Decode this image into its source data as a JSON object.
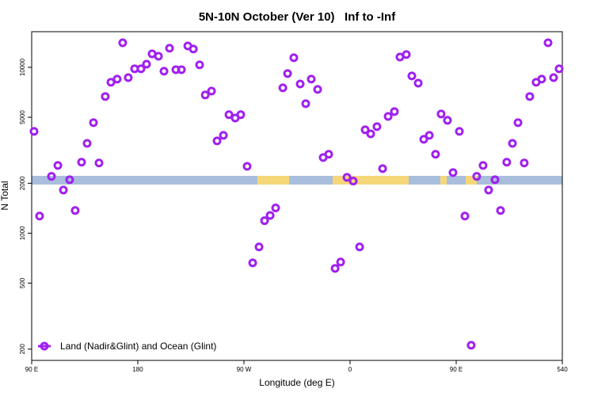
{
  "chart_data": {
    "type": "scatter",
    "title": "5N-10N October (Ver 10)   Inf to -Inf",
    "x_label": "Longitude (deg E)",
    "y_label": "N Total",
    "log_y": true,
    "legend": "bottom-left",
    "xlim": [
      90,
      540
    ],
    "ylim": [
      171,
      16400
    ],
    "xticks": [
      {
        "value": 90,
        "label": "90 E"
      },
      180,
      {
        "value": 270,
        "label": "90 W"
      },
      {
        "value": 360,
        "label": "0"
      },
      {
        "value": 450,
        "label": "90 E"
      },
      540
    ],
    "yticks": [
      200,
      500,
      1000,
      2000,
      5000,
      10000
    ],
    "series": [
      {
        "name": "Land (Nadir&Glint) and Ocean (Glint)",
        "color": "#a020f0",
        "x": [
          92.0,
          96.7,
          106.8,
          112.2,
          116.9,
          122.2,
          126.9,
          132.3,
          137.0,
          142.4,
          147.1,
          152.4,
          157.2,
          162.5,
          167.2,
          171.9,
          177.3,
          182.7,
          187.4,
          192.1,
          197.5,
          202.2,
          206.9,
          212.3,
          217.0,
          222.4,
          227.1,
          232.4,
          237.2,
          242.5,
          247.2,
          252.6,
          257.3,
          262.6,
          267.3,
          272.7,
          277.4,
          282.8,
          287.5,
          292.2,
          296.9,
          303.0,
          307.0,
          312.3,
          317.7,
          322.4,
          327.1,
          332.5,
          337.2,
          341.9,
          347.3,
          352.0,
          357.4,
          362.7,
          368.1,
          372.8,
          377.5,
          382.8,
          387.6,
          392.3,
          397.6,
          402.3,
          407.7,
          412.4,
          417.8,
          422.5,
          427.2,
          432.5,
          437.2,
          442.6,
          447.3,
          452.7,
          457.4,
          462.7,
          467.4,
          472.8,
          477.5,
          482.9,
          487.6,
          492.9,
          497.7,
          502.4,
          507.7,
          512.4,
          517.8,
          522.5,
          527.9,
          532.6,
          537.3
        ],
        "values": [
          4110,
          1268,
          2200,
          2560,
          1820,
          2100,
          1370,
          2680,
          3480,
          4640,
          2650,
          6670,
          8130,
          8490,
          14060,
          8670,
          9800,
          9800,
          10450,
          12060,
          11670,
          9480,
          13030,
          9680,
          9680,
          13460,
          12890,
          10350,
          6810,
          7190,
          3600,
          3890,
          5180,
          4950,
          5180,
          2530,
          662,
          826,
          1190,
          1280,
          1420,
          7520,
          9170,
          11420,
          7940,
          6040,
          8490,
          7360,
          2860,
          2990,
          613,
          670,
          2170,
          2060,
          826,
          4200,
          3970,
          4390,
          2450,
          5060,
          5410,
          11540,
          11940,
          8870,
          8030,
          3680,
          3890,
          2990,
          5230,
          4790,
          2320,
          4110,
          1268,
          211,
          2200,
          2560,
          1820,
          2100,
          1370,
          2680,
          3480,
          4640,
          2650,
          6670,
          8130,
          8490,
          14060,
          8670,
          9800
        ]
      }
    ]
  }
}
